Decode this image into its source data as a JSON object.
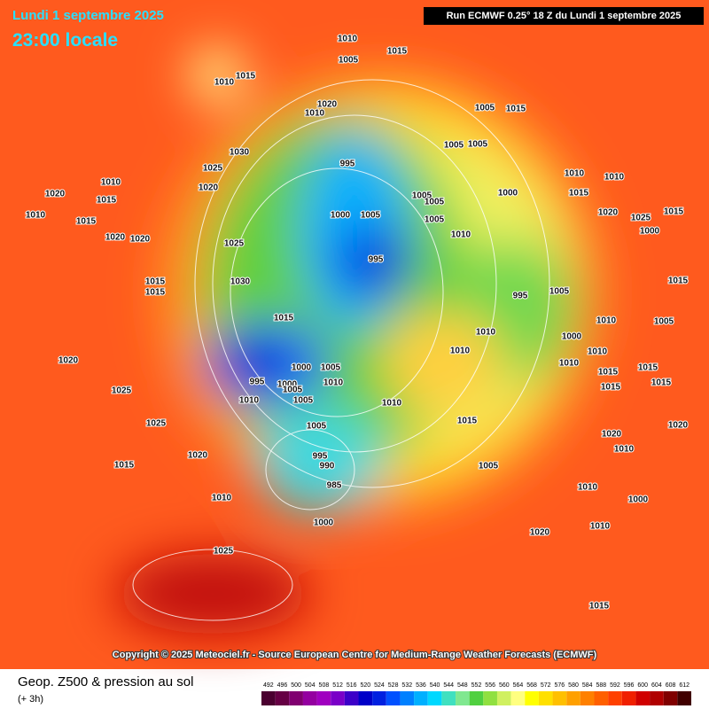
{
  "header": {
    "date": "Lundi 1 septembre 2025",
    "time": "23:00 locale",
    "run": "Run ECMWF 0.25° 18 Z du Lundi 1 septembre 2025"
  },
  "copyright": "Copyright © 2025 Meteociel.fr - Source European Centre for Medium-Range Weather Forecasts (ECMWF)",
  "legend": {
    "title": "Geop. Z500 & pression au sol",
    "subtitle": "(+ 3h)",
    "values": [
      492,
      496,
      500,
      504,
      508,
      512,
      516,
      520,
      524,
      528,
      532,
      536,
      540,
      544,
      548,
      552,
      556,
      560,
      564,
      568,
      572,
      576,
      580,
      584,
      588,
      592,
      596,
      600,
      604,
      608,
      612
    ],
    "colors": [
      "#4b0030",
      "#660044",
      "#800070",
      "#9400a0",
      "#a000c0",
      "#7a00c8",
      "#3c00c8",
      "#0000c8",
      "#0020e0",
      "#0050ff",
      "#0080ff",
      "#00b0ff",
      "#00d8ff",
      "#40e0c0",
      "#80e890",
      "#50d040",
      "#90e040",
      "#d0f060",
      "#ffff80",
      "#ffff00",
      "#ffe000",
      "#ffc000",
      "#ffa000",
      "#ff8000",
      "#ff6000",
      "#ff4000",
      "#f02000",
      "#d00000",
      "#b00000",
      "#800000",
      "#400000"
    ]
  },
  "pressure_labels": [
    1010,
    1005,
    1015,
    1010,
    1015,
    1030,
    1025,
    1020,
    1020,
    1010,
    1010,
    1015,
    1015,
    1020,
    1020,
    1025,
    1030,
    1015,
    1015,
    1020,
    1025,
    1025,
    1015,
    1020,
    1010,
    1025,
    995,
    1000,
    1005,
    995,
    1015,
    995,
    1000,
    1005,
    1010,
    1000,
    1005,
    1010,
    995,
    990,
    985,
    1000,
    1005,
    1005,
    1005,
    1005,
    1005,
    1015,
    1020,
    1010,
    1010,
    1015,
    995,
    1005,
    1005,
    1010,
    1010,
    1010,
    1010,
    1015,
    1020,
    1025,
    1015,
    1000,
    1010,
    1005,
    1000,
    1010,
    1015,
    1015,
    1010,
    1015,
    1015,
    1015,
    1020,
    1010,
    1020,
    1010,
    1000,
    1010,
    1015,
    1020,
    1005,
    1000,
    1010,
    1005,
    1005
  ]
}
